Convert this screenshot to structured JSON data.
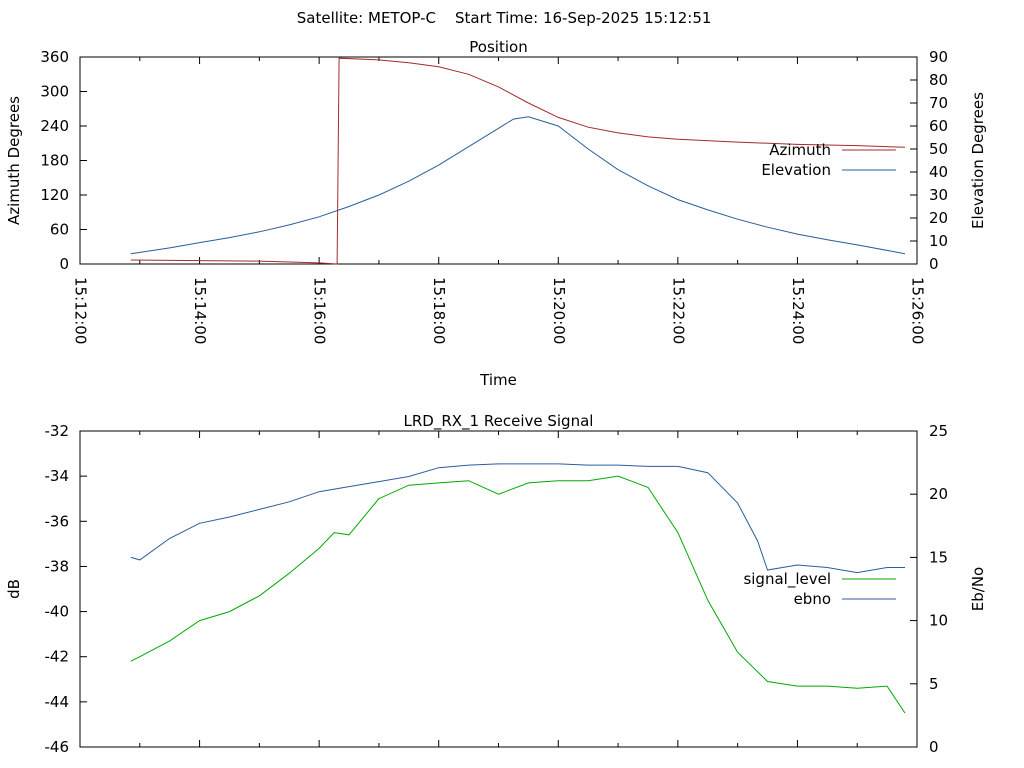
{
  "header": {
    "satellite": "Satellite: METOP-C",
    "start_time": "Start Time: 16-Sep-2025 15:12:51"
  },
  "chart_data": [
    {
      "type": "line",
      "title": "Position",
      "xlabel": "Time",
      "ylabel": "Azimuth Degrees",
      "y2label": "Elevation Degrees",
      "xlim": [
        "15:12:00",
        "15:26:00"
      ],
      "xticks": [
        "15:12:00",
        "15:14:00",
        "15:16:00",
        "15:18:00",
        "15:20:00",
        "15:22:00",
        "15:24:00",
        "15:26:00"
      ],
      "ylim": [
        0,
        360
      ],
      "yticks": [
        0,
        60,
        120,
        180,
        240,
        300,
        360
      ],
      "y2lim": [
        0,
        90
      ],
      "y2ticks": [
        0,
        10,
        20,
        30,
        40,
        50,
        60,
        70,
        80,
        90
      ],
      "legend": "right",
      "series": [
        {
          "name": "Azimuth",
          "axis": "left",
          "color": "#a52a2a",
          "x": [
            "15:12:51",
            "15:14:00",
            "15:15:00",
            "15:16:00",
            "15:16:18",
            "15:16:19",
            "15:16:20",
            "15:17:00",
            "15:17:30",
            "15:18:00",
            "15:18:30",
            "15:19:00",
            "15:19:30",
            "15:20:00",
            "15:20:30",
            "15:21:00",
            "15:21:30",
            "15:22:00",
            "15:23:00",
            "15:24:00",
            "15:25:00",
            "15:25:48"
          ],
          "values": [
            7,
            6,
            5,
            2,
            0,
            180,
            358,
            355,
            350,
            343,
            330,
            308,
            280,
            255,
            238,
            228,
            221,
            217,
            212,
            208,
            206,
            203
          ]
        },
        {
          "name": "Elevation",
          "axis": "right",
          "color": "#2a5d99",
          "x": [
            "15:12:51",
            "15:13:30",
            "15:14:00",
            "15:14:30",
            "15:15:00",
            "15:15:30",
            "15:16:00",
            "15:16:30",
            "15:17:00",
            "15:17:30",
            "15:18:00",
            "15:18:30",
            "15:19:00",
            "15:19:15",
            "15:19:30",
            "15:20:00",
            "15:20:30",
            "15:21:00",
            "15:21:30",
            "15:22:00",
            "15:22:30",
            "15:23:00",
            "15:23:30",
            "15:24:00",
            "15:24:30",
            "15:25:00",
            "15:25:48"
          ],
          "values": [
            4.5,
            7,
            9.3,
            11.5,
            14,
            17,
            20.5,
            25,
            30,
            36,
            43,
            51,
            59,
            63,
            64,
            60,
            50,
            41,
            34,
            28,
            23.5,
            19.5,
            16,
            13,
            10.5,
            8.3,
            4.5
          ]
        }
      ]
    },
    {
      "type": "line",
      "title": "LRD_RX_1 Receive Signal",
      "ylabel": "dB",
      "y2label": "Eb/No",
      "xlim": [
        "15:12:00",
        "15:26:00"
      ],
      "ylim": [
        -46,
        -32
      ],
      "yticks": [
        -46,
        -44,
        -42,
        -40,
        -38,
        -36,
        -34,
        -32
      ],
      "y2lim": [
        0,
        25
      ],
      "y2ticks": [
        0,
        5,
        10,
        15,
        20,
        25
      ],
      "legend": "right",
      "series": [
        {
          "name": "signal_level",
          "axis": "left",
          "color": "#00aa00",
          "x": [
            "15:12:51",
            "15:13:00",
            "15:13:30",
            "15:14:00",
            "15:14:30",
            "15:15:00",
            "15:15:30",
            "15:16:00",
            "15:16:15",
            "15:16:30",
            "15:17:00",
            "15:17:30",
            "15:18:00",
            "15:18:30",
            "15:19:00",
            "15:19:30",
            "15:20:00",
            "15:20:30",
            "15:21:00",
            "15:21:30",
            "15:22:00",
            "15:22:30",
            "15:23:00",
            "15:23:30",
            "15:24:00",
            "15:24:30",
            "15:25:00",
            "15:25:30",
            "15:25:48"
          ],
          "values": [
            -42.2,
            -42.0,
            -41.3,
            -40.4,
            -40.0,
            -39.3,
            -38.3,
            -37.2,
            -36.5,
            -36.6,
            -35.0,
            -34.4,
            -34.3,
            -34.2,
            -34.8,
            -34.3,
            -34.2,
            -34.2,
            -34.0,
            -34.5,
            -36.5,
            -39.5,
            -41.8,
            -43.1,
            -43.3,
            -43.3,
            -43.4,
            -43.3,
            -44.5
          ]
        },
        {
          "name": "ebno",
          "axis": "right",
          "color": "#2a5d99",
          "x": [
            "15:12:51",
            "15:13:00",
            "15:13:30",
            "15:14:00",
            "15:14:30",
            "15:15:00",
            "15:15:30",
            "15:16:00",
            "15:16:30",
            "15:17:00",
            "15:17:30",
            "15:18:00",
            "15:18:30",
            "15:19:00",
            "15:19:30",
            "15:20:00",
            "15:20:30",
            "15:21:00",
            "15:21:30",
            "15:22:00",
            "15:22:30",
            "15:23:00",
            "15:23:20",
            "15:23:30",
            "15:24:00",
            "15:24:30",
            "15:25:00",
            "15:25:30",
            "15:25:48"
          ],
          "values": [
            15.0,
            14.8,
            16.5,
            17.7,
            18.2,
            18.8,
            19.4,
            20.2,
            20.6,
            21.0,
            21.4,
            22.1,
            22.3,
            22.4,
            22.4,
            22.4,
            22.3,
            22.3,
            22.2,
            22.2,
            21.7,
            19.3,
            16.3,
            14.0,
            14.4,
            14.2,
            13.8,
            14.2,
            14.2
          ]
        }
      ]
    }
  ]
}
